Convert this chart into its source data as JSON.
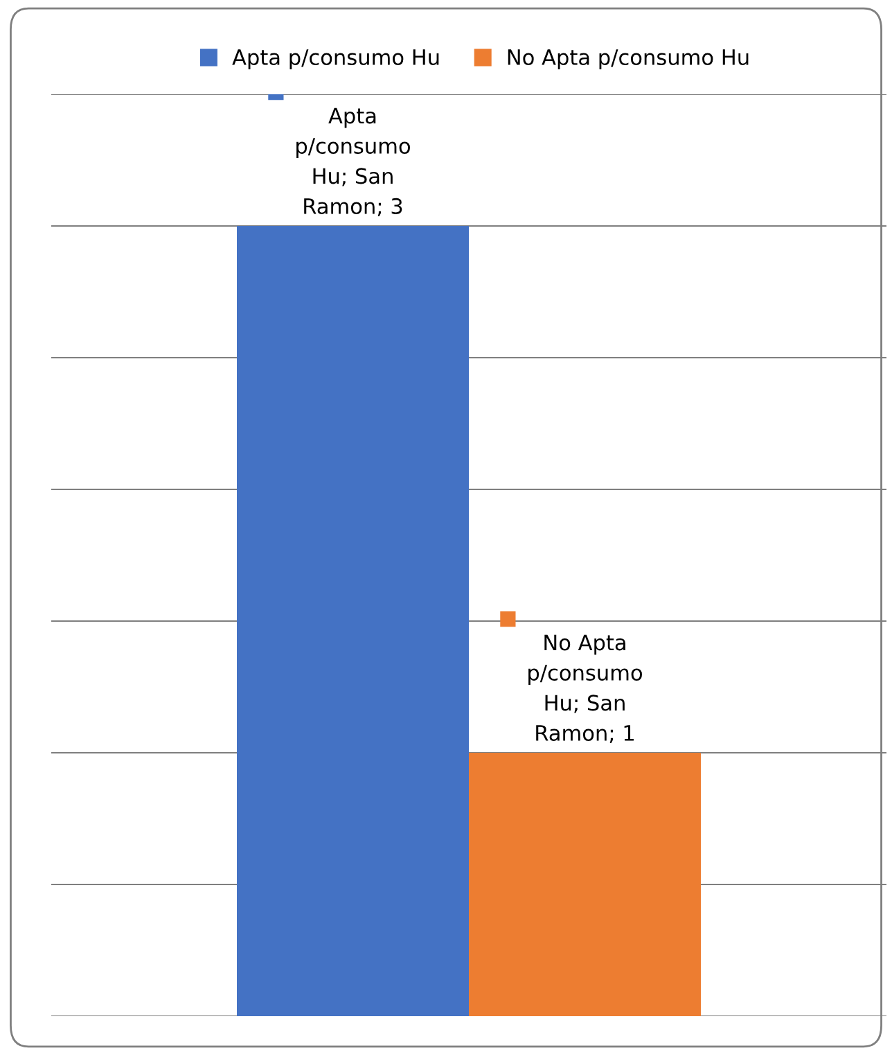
{
  "chart_data": {
    "type": "bar",
    "categories": [
      null
    ],
    "series": [
      {
        "name": "Apta p/consumo Hu",
        "color": "#4472c4",
        "values": [
          3
        ],
        "value_labels": [
          "Apta p/consumo Hu; San Ramon; 3"
        ]
      },
      {
        "name": "No Apta p/consumo Hu",
        "color": "#ed7d31",
        "values": [
          1
        ],
        "value_labels": [
          "No Apta p/consumo Hu; San Ramon; 1"
        ]
      }
    ],
    "ylim": [
      0,
      3.5
    ],
    "yticks": [
      {
        "value": 0,
        "label": null
      },
      {
        "value": 0.5,
        "label": null
      },
      {
        "value": 1,
        "label": null
      },
      {
        "value": 1.5,
        "label": null
      },
      {
        "value": 2,
        "label": null
      },
      {
        "value": 2.5,
        "label": null
      },
      {
        "value": 3,
        "label": null
      },
      {
        "value": 3.5,
        "label": null
      }
    ],
    "grid": "y",
    "legend": "top"
  }
}
